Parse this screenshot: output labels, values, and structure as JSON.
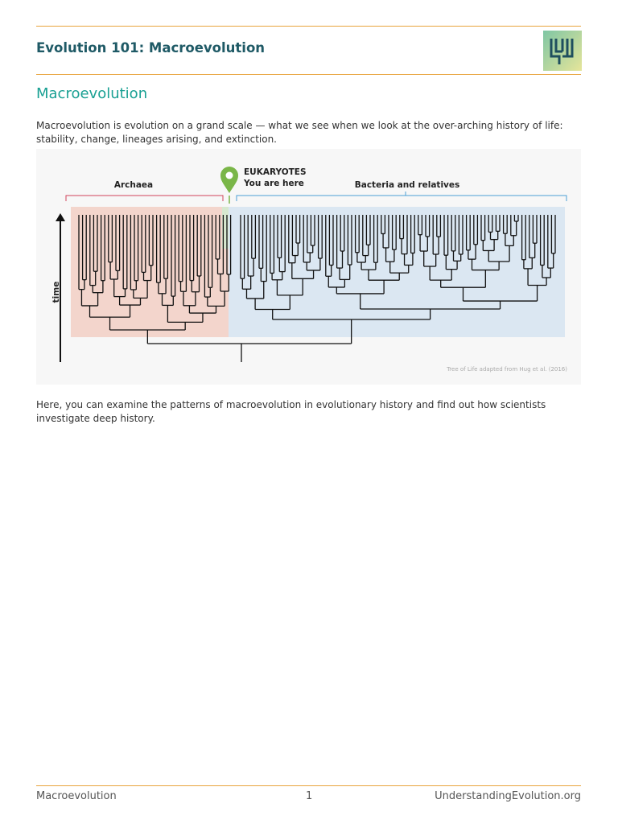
{
  "header": {
    "title": "Evolution 101: Macroevolution"
  },
  "section": {
    "heading": "Macroevolution",
    "intro": "Macroevolution is evolution on a grand scale — what we see when we look at the over-arching history of life: stability, change, lineages arising, and extinction.",
    "outro": "Here, you can examine the patterns of macroevolution in evolutionary history and find out how scientists investigate deep history."
  },
  "figure": {
    "archaea": "Archaea",
    "eukaryotes": "EUKARYOTES",
    "you_are_here": "You are here",
    "bacteria": "Bacteria and relatives",
    "time": "time",
    "credit": "Tree of Life adapted from Hug et al. (2016)"
  },
  "footer": {
    "left": "Macroevolution",
    "page": "1",
    "right": "UnderstandingEvolution.org"
  }
}
